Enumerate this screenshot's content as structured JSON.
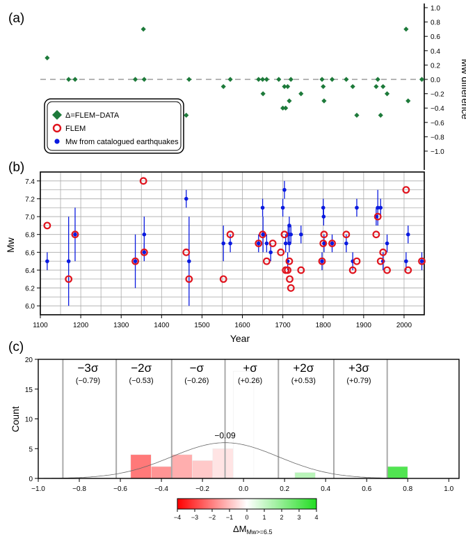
{
  "figure": {
    "panel_a_label": "(a)",
    "panel_b_label": "(b)",
    "panel_c_label": "(c)",
    "colorbar_label_main": "ΔM",
    "colorbar_label_sub": "Mw>=6.5"
  },
  "chart_data": [
    {
      "id": "a",
      "type": "scatter",
      "ylabel": "Mw difference",
      "ylim": [
        -1.0,
        1.0
      ],
      "y_ticks": [
        "1.0",
        "0.8",
        "0.6",
        "0.4",
        "0.2",
        "0.0",
        "−0.2",
        "−0.4",
        "−0.6",
        "−0.8",
        "−1.0"
      ],
      "xlim": [
        1100,
        2050
      ],
      "zero_line": "dashed",
      "legend": {
        "placement": "lower-left",
        "entries": [
          "Δ=FLEM−DATA",
          "FLEM",
          "Mw from catalogued earthquakes"
        ]
      },
      "series": [
        {
          "name": "Δ=FLEM−DATA",
          "color": "#1d7a3a",
          "marker": "diamond",
          "points": [
            [
              1117,
              0.3
            ],
            [
              1170,
              0.0
            ],
            [
              1186,
              0.0
            ],
            [
              1335,
              0.0
            ],
            [
              1355,
              0.7
            ],
            [
              1357,
              0.0
            ],
            [
              1461,
              -0.5
            ],
            [
              1468,
              0.0
            ],
            [
              1553,
              -0.1
            ],
            [
              1570,
              0.0
            ],
            [
              1640,
              0.0
            ],
            [
              1650,
              0.0
            ],
            [
              1651,
              -0.2
            ],
            [
              1660,
              0.0
            ],
            [
              1690,
              0.0
            ],
            [
              1700,
              -0.4
            ],
            [
              1704,
              -0.1
            ],
            [
              1707,
              -0.4
            ],
            [
              1712,
              -0.1
            ],
            [
              1716,
              -0.3
            ],
            [
              1720,
              0.0
            ],
            [
              1745,
              -0.2
            ],
            [
              1797,
              0.0
            ],
            [
              1800,
              -0.1
            ],
            [
              1802,
              -0.3
            ],
            [
              1822,
              0.0
            ],
            [
              1857,
              0.0
            ],
            [
              1873,
              -0.1
            ],
            [
              1883,
              -0.5
            ],
            [
              1931,
              -0.1
            ],
            [
              1935,
              0.0
            ],
            [
              1942,
              -0.5
            ],
            [
              1948,
              -0.1
            ],
            [
              1958,
              -0.2
            ],
            [
              2005,
              0.7
            ],
            [
              2010,
              -0.3
            ],
            [
              2044,
              0.0
            ]
          ]
        }
      ]
    },
    {
      "id": "b",
      "type": "scatter",
      "xlabel": "Year",
      "ylabel": "Mw",
      "xlim": [
        1100,
        2050
      ],
      "ylim": [
        5.9,
        7.5
      ],
      "x_ticks": [
        "1100",
        "1200",
        "1300",
        "1400",
        "1500",
        "1600",
        "1700",
        "1800",
        "1900",
        "2000"
      ],
      "y_ticks": [
        "6.0",
        "6.2",
        "6.4",
        "6.6",
        "6.8",
        "7.0",
        "7.2",
        "7.4"
      ],
      "grid": true,
      "series": [
        {
          "name": "Mw from catalogued earthquakes",
          "color": "#0a1ae0",
          "marker": "dot",
          "points": [
            [
              1117,
              6.5,
              0.1
            ],
            [
              1170,
              6.5,
              0.5
            ],
            [
              1186,
              6.8,
              0.3
            ],
            [
              1335,
              6.5,
              0.3
            ],
            [
              1357,
              6.8,
              0.2
            ],
            [
              1357,
              6.6,
              0.1
            ],
            [
              1461,
              7.2,
              0.1
            ],
            [
              1468,
              6.5,
              0.5
            ],
            [
              1553,
              6.7,
              0.2
            ],
            [
              1570,
              6.7,
              0.1
            ],
            [
              1640,
              6.7,
              0.1
            ],
            [
              1650,
              7.1,
              0.1
            ],
            [
              1651,
              6.8,
              0.2
            ],
            [
              1660,
              6.7,
              0.1
            ],
            [
              1670,
              6.6,
              0.1
            ],
            [
              1700,
              7.1,
              0.1
            ],
            [
              1704,
              7.3,
              0.1
            ],
            [
              1707,
              6.7,
              0.1
            ],
            [
              1712,
              6.5,
              0.1
            ],
            [
              1713,
              6.8,
              0.1
            ],
            [
              1716,
              6.9,
              0.1
            ],
            [
              1716,
              6.7,
              0.1
            ],
            [
              1720,
              6.8,
              0.1
            ],
            [
              1745,
              6.8,
              0.1
            ],
            [
              1797,
              6.5,
              0.1
            ],
            [
              1800,
              7.1,
              0.1
            ],
            [
              1802,
              6.7,
              0.1
            ],
            [
              1801,
              7.0,
              0.1
            ],
            [
              1822,
              6.7,
              0.1
            ],
            [
              1857,
              6.7,
              0.1
            ],
            [
              1873,
              6.5,
              0.1
            ],
            [
              1883,
              7.1,
              0.1
            ],
            [
              1931,
              7.0,
              0.1
            ],
            [
              1935,
              7.1,
              0.2
            ],
            [
              1942,
              7.1,
              0.1
            ],
            [
              1948,
              6.5,
              0.1
            ],
            [
              1958,
              6.7,
              0.1
            ],
            [
              2005,
              6.5,
              0.1
            ],
            [
              2010,
              6.8,
              0.1
            ],
            [
              2044,
              6.5,
              0.1
            ]
          ]
        },
        {
          "name": "FLEM",
          "color": "#e0141e",
          "marker": "ring",
          "points": [
            [
              1117,
              6.9
            ],
            [
              1170,
              6.3
            ],
            [
              1186,
              6.8
            ],
            [
              1335,
              6.5
            ],
            [
              1355,
              7.4
            ],
            [
              1357,
              6.6
            ],
            [
              1461,
              6.6
            ],
            [
              1468,
              6.3
            ],
            [
              1553,
              6.3
            ],
            [
              1570,
              6.8
            ],
            [
              1640,
              6.7
            ],
            [
              1650,
              6.8
            ],
            [
              1660,
              6.5
            ],
            [
              1675,
              6.7
            ],
            [
              1695,
              6.6
            ],
            [
              1704,
              6.8
            ],
            [
              1707,
              6.4
            ],
            [
              1712,
              6.4
            ],
            [
              1716,
              6.5
            ],
            [
              1717,
              6.3
            ],
            [
              1720,
              6.2
            ],
            [
              1745,
              6.4
            ],
            [
              1797,
              6.5
            ],
            [
              1800,
              6.7
            ],
            [
              1802,
              6.8
            ],
            [
              1822,
              6.7
            ],
            [
              1857,
              6.8
            ],
            [
              1873,
              6.4
            ],
            [
              1883,
              6.5
            ],
            [
              1931,
              6.8
            ],
            [
              1935,
              7.0
            ],
            [
              1942,
              6.5
            ],
            [
              1948,
              6.6
            ],
            [
              1958,
              6.4
            ],
            [
              2005,
              7.3
            ],
            [
              2010,
              6.4
            ],
            [
              2044,
              6.5
            ]
          ]
        }
      ]
    },
    {
      "id": "c",
      "type": "bar",
      "ylabel": "Count",
      "xlim": [
        -1.0,
        1.05
      ],
      "ylim": [
        0,
        20
      ],
      "x_ticks": [
        "−1.0",
        "−0.8",
        "−0.6",
        "−0.4",
        "−0.2",
        "0.0",
        "0.2",
        "0.4",
        "0.6",
        "0.8",
        "1.0"
      ],
      "y_ticks": [
        "0",
        "5",
        "10",
        "15",
        "20"
      ],
      "bins": [
        {
          "x0": -0.55,
          "x1": -0.45,
          "count": 4
        },
        {
          "x0": -0.45,
          "x1": -0.35,
          "count": 2
        },
        {
          "x0": -0.35,
          "x1": -0.25,
          "count": 4
        },
        {
          "x0": -0.25,
          "x1": -0.15,
          "count": 3
        },
        {
          "x0": -0.15,
          "x1": -0.05,
          "count": 5
        },
        {
          "x0": -0.05,
          "x1": 0.05,
          "count": 18
        },
        {
          "x0": 0.25,
          "x1": 0.35,
          "count": 1
        },
        {
          "x0": 0.7,
          "x1": 0.8,
          "count": 2
        }
      ],
      "mean": -0.09,
      "mean_label": "−0.09",
      "fit_curve": {
        "type": "normal",
        "mean": -0.09,
        "sigma": 0.26,
        "peak": 6
      },
      "sigma_lines": [
        {
          "x": -0.88,
          "label": "−3σ",
          "value": "(−0.79)"
        },
        {
          "x": -0.62,
          "label": "−2σ",
          "value": "(−0.53)"
        },
        {
          "x": -0.35,
          "label": "−σ",
          "value": "(−0.26)"
        },
        {
          "x": -0.09,
          "label": "+σ",
          "value": "(+0.26)"
        },
        {
          "x": 0.17,
          "label": "+2σ",
          "value": "(+0.53)"
        },
        {
          "x": 0.44,
          "label": "+3σ",
          "value": "(+0.79)"
        },
        {
          "x": 0.7,
          "label": "",
          "value": ""
        }
      ]
    },
    {
      "id": "colorbar",
      "type": "heatmap",
      "range": [
        -4,
        4
      ],
      "ticks": [
        "−4",
        "−3",
        "−2",
        "−1",
        "0",
        "1",
        "2",
        "3",
        "4"
      ],
      "colors": {
        "low": "#ff0000",
        "mid": "#ffffff",
        "high": "#22dd22"
      }
    }
  ]
}
